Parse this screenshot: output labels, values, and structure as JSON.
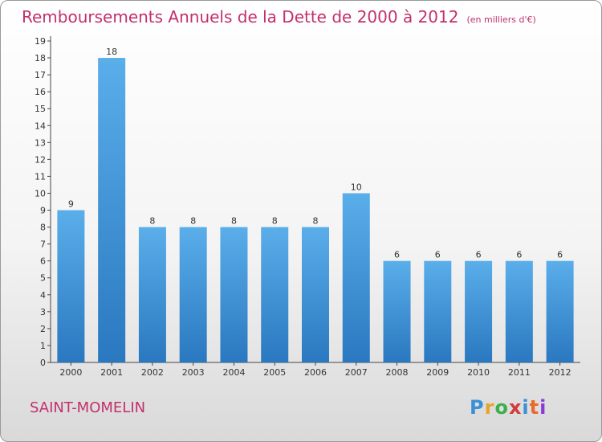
{
  "chart_data": {
    "type": "bar",
    "title": "Remboursements Annuels de la Dette de 2000 à 2012",
    "subtitle": "(en milliers d'€)",
    "categories": [
      "2000",
      "2001",
      "2002",
      "2003",
      "2004",
      "2005",
      "2006",
      "2007",
      "2008",
      "2009",
      "2010",
      "2011",
      "2012"
    ],
    "values": [
      9,
      18,
      8,
      8,
      8,
      8,
      8,
      10,
      6,
      6,
      6,
      6,
      6
    ],
    "ylim": [
      0,
      19
    ],
    "yticks": [
      0,
      1,
      2,
      3,
      4,
      5,
      6,
      7,
      8,
      9,
      10,
      11,
      12,
      13,
      14,
      15,
      16,
      17,
      18,
      19
    ],
    "grid": false,
    "bar_color_top": "#5aaeea",
    "bar_color_bottom": "#2a78c0"
  },
  "commune": "SAINT-MOMELIN",
  "logo": {
    "text": "Proxiti"
  },
  "colors": {
    "accent": "#c2306c"
  }
}
